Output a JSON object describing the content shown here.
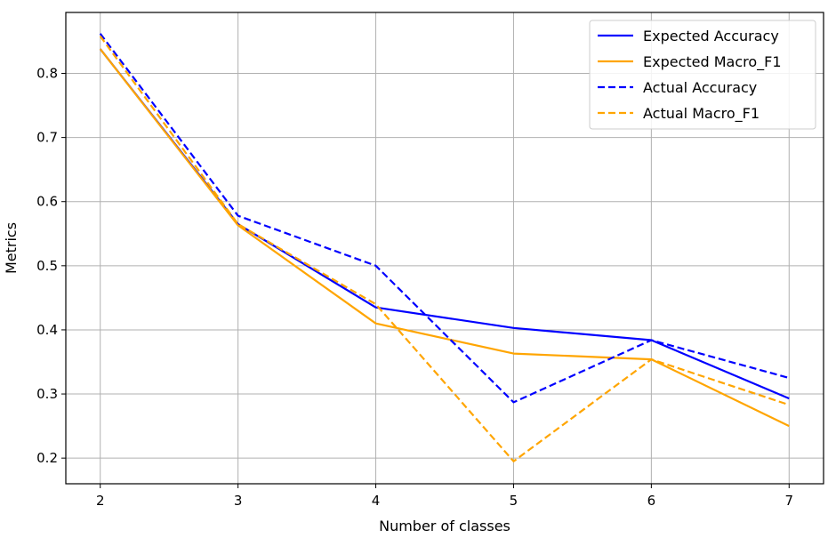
{
  "chart_data": {
    "type": "line",
    "title": "",
    "xlabel": "Number of classes",
    "ylabel": "Metrics",
    "x": [
      2,
      3,
      4,
      5,
      6,
      7
    ],
    "xlim": [
      1.75,
      7.25
    ],
    "ylim": [
      0.16,
      0.895
    ],
    "xticks": [
      2,
      3,
      4,
      5,
      6,
      7
    ],
    "yticks": [
      0.2,
      0.3,
      0.4,
      0.5,
      0.6,
      0.7,
      0.8
    ],
    "ytick_labels": [
      "0.2",
      "0.3",
      "0.4",
      "0.5",
      "0.6",
      "0.7",
      "0.8"
    ],
    "grid": true,
    "legend_position": "top-right",
    "series": [
      {
        "name": "Expected Accuracy",
        "color": "#0000ff",
        "style": "solid",
        "values": [
          0.838,
          0.565,
          0.435,
          0.403,
          0.384,
          0.293
        ]
      },
      {
        "name": "Expected Macro_F1",
        "color": "#ffa500",
        "style": "solid",
        "values": [
          0.838,
          0.563,
          0.41,
          0.363,
          0.354,
          0.25
        ]
      },
      {
        "name": "Actual Accuracy",
        "color": "#0000ff",
        "style": "dashed",
        "values": [
          0.862,
          0.578,
          0.5,
          0.287,
          0.384,
          0.325
        ]
      },
      {
        "name": "Actual Macro_F1",
        "color": "#ffa500",
        "style": "dashed",
        "values": [
          0.858,
          0.565,
          0.44,
          0.195,
          0.354,
          0.283
        ]
      }
    ]
  }
}
